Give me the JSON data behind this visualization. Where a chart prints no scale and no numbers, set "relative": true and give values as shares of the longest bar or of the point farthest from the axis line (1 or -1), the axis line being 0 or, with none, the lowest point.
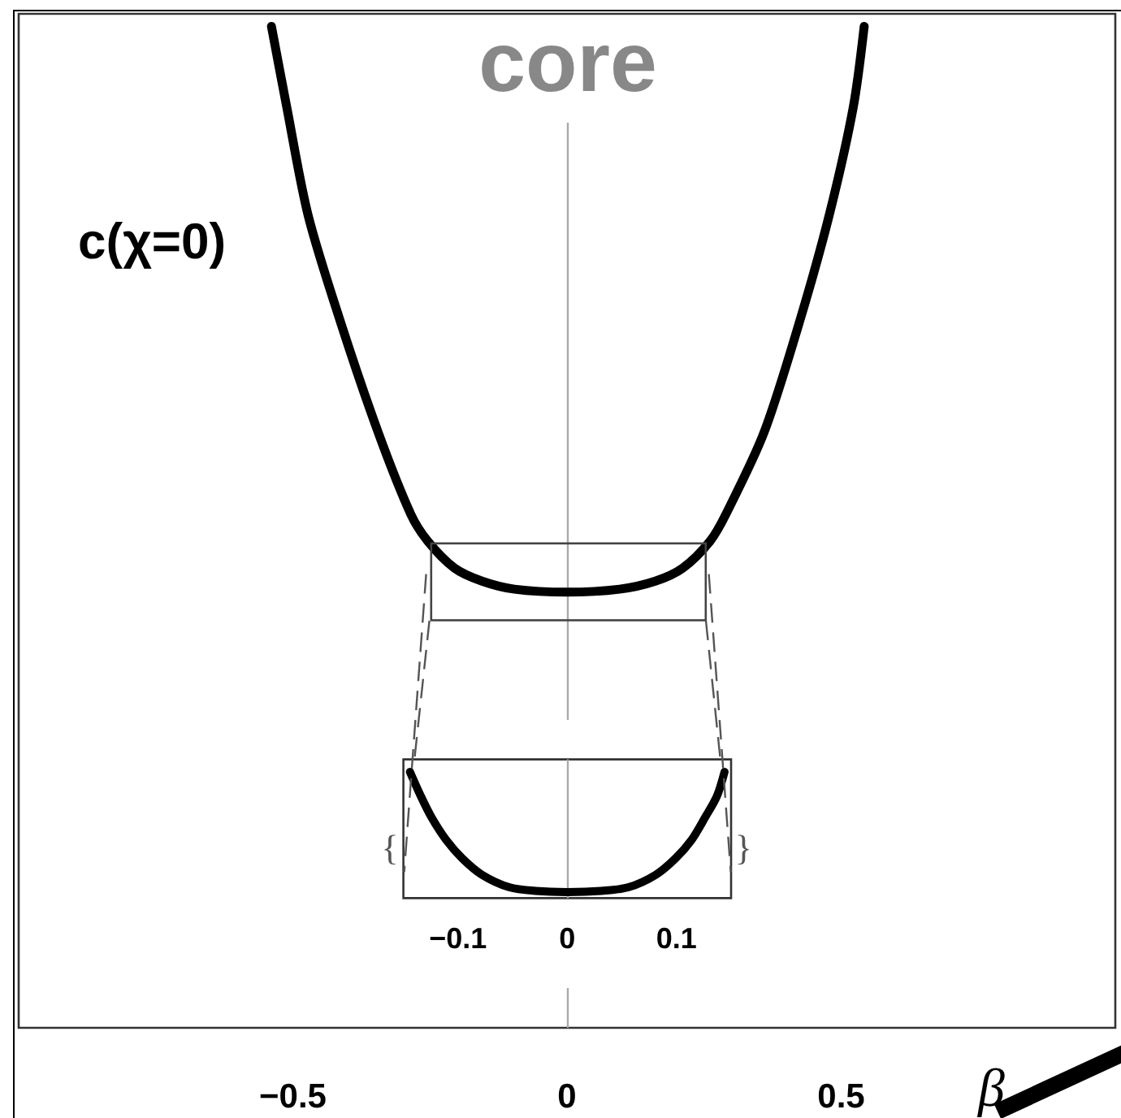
{
  "chart_data": [
    {
      "type": "line",
      "title": "core",
      "xlabel": "β",
      "ylabel": "c(χ=0)",
      "relative": true,
      "xlim": [
        -1,
        1
      ],
      "xticks": [
        {
          "value": -0.5,
          "label": "−0.5"
        },
        0,
        0.5
      ],
      "x": [
        -0.539,
        -0.511,
        -0.472,
        -0.412,
        -0.344,
        -0.285,
        -0.254,
        -0.205,
        -0.155,
        -0.096,
        0,
        0.096,
        0.161,
        0.211,
        0.261,
        0.29,
        0.359,
        0.423,
        0.478,
        0.522,
        0.542
      ],
      "series": [
        {
          "color": "#000000",
          "values": [
            1,
            0.919,
            0.811,
            0.703,
            0.594,
            0.513,
            0.486,
            0.459,
            0.446,
            0.438,
            0.435,
            0.438,
            0.446,
            0.459,
            0.486,
            0.513,
            0.594,
            0.703,
            0.811,
            0.919,
            1
          ]
        }
      ],
      "ref_lines": [
        {
          "axis": "x",
          "value": 0,
          "color": "#aaaaaa"
        }
      ]
    },
    {
      "type": "line",
      "relative": true,
      "xlim": [
        -0.15,
        0.15
      ],
      "xticks": [
        {
          "value": -0.1,
          "label": "−0.1"
        },
        0,
        0.1
      ],
      "x": [
        -0.144,
        -0.134,
        -0.124,
        -0.111,
        -0.096,
        -0.078,
        -0.053,
        -0.029,
        0,
        0.031,
        0.056,
        0.081,
        0.099,
        0.114,
        0.126,
        0.137,
        0.144
      ],
      "series": [
        {
          "color": "#000000",
          "values": [
            1,
            0.807,
            0.636,
            0.463,
            0.314,
            0.185,
            0.086,
            0.057,
            0.048,
            0.057,
            0.086,
            0.185,
            0.314,
            0.463,
            0.636,
            0.807,
            1
          ]
        }
      ],
      "ref_lines": [
        {
          "axis": "x",
          "value": 0,
          "color": "#aaaaaa"
        }
      ],
      "annotations": [
        "{",
        "}"
      ]
    }
  ]
}
